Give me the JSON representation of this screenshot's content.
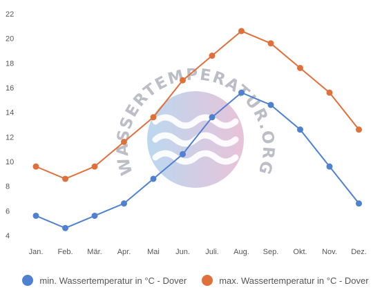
{
  "chart_data": {
    "type": "line",
    "categories": [
      "Jan.",
      "Feb.",
      "Mär.",
      "Apr.",
      "Mai",
      "Jun.",
      "Juli.",
      "Aug.",
      "Sep.",
      "Okt.",
      "Nov.",
      "Dez."
    ],
    "ylim": [
      4,
      22
    ],
    "yticks": [
      4,
      6,
      8,
      10,
      12,
      14,
      16,
      18,
      20,
      22
    ],
    "grid": false,
    "legend_position": "bottom",
    "series": [
      {
        "name": "min. Wassertemperatur in °C - Dover",
        "color": "#4f81d0",
        "values": [
          5.6,
          4.6,
          5.6,
          6.6,
          8.6,
          10.6,
          13.6,
          15.6,
          14.6,
          12.6,
          9.6,
          6.6
        ]
      },
      {
        "name": "max. Wassertemperatur in °C - Dover",
        "color": "#e0703a",
        "values": [
          9.6,
          8.6,
          9.6,
          11.6,
          13.6,
          16.6,
          18.6,
          20.6,
          19.6,
          17.6,
          15.6,
          12.6
        ]
      }
    ]
  },
  "watermark": {
    "text": "WASSERTEMPERATUR.ORG"
  }
}
